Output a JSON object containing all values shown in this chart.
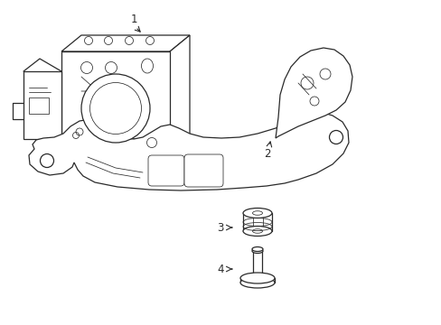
{
  "bg_color": "#ffffff",
  "line_color": "#2a2a2a",
  "lw": 0.9,
  "tlw": 0.55,
  "figsize": [
    4.89,
    3.6
  ],
  "dpi": 100
}
